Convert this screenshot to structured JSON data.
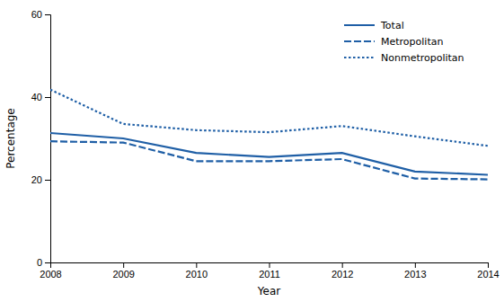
{
  "chart_data": {
    "type": "line",
    "x": [
      2008,
      2009,
      2010,
      2011,
      2012,
      2013,
      2014
    ],
    "series": [
      {
        "name": "Total",
        "color": "#1f5fa6",
        "line_style": "solid",
        "values": [
          31.3,
          30.0,
          26.5,
          25.5,
          26.5,
          22.0,
          21.2
        ]
      },
      {
        "name": "Metropolitan",
        "color": "#1f5fa6",
        "line_style": "dashed",
        "values": [
          29.3,
          29.0,
          24.5,
          24.5,
          25.0,
          20.3,
          20.1
        ]
      },
      {
        "name": "Nonmetropolitan",
        "color": "#1f5fa6",
        "line_style": "dotted",
        "values": [
          41.8,
          33.5,
          32.0,
          31.5,
          33.0,
          30.5,
          28.2
        ]
      }
    ],
    "xlabel": "Year",
    "ylabel": "Percentage",
    "xlim": [
      2008,
      2014
    ],
    "xticks": [
      2008,
      2009,
      2010,
      2011,
      2012,
      2013,
      2014
    ],
    "ylim": [
      0,
      60
    ],
    "yticks": [
      0,
      20,
      40,
      60
    ],
    "legend": "upper right",
    "grid": false
  }
}
